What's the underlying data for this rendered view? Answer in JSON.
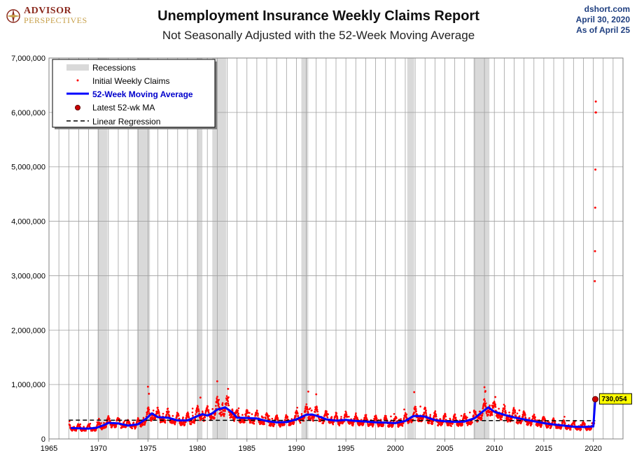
{
  "header": {
    "logo_line1": "ADVISOR",
    "logo_line2": "PERSPECTIVES",
    "source_site": "dshort.com",
    "source_date": "April 30, 2020",
    "source_asof": "As of April 25"
  },
  "colors": {
    "claims": "#ff0000",
    "moving_average": "#0000ff",
    "recession": "#d9d9d9",
    "regression": "#000000",
    "latest_marker": "#cc0000",
    "callout_bg": "#ffff00"
  },
  "chart_data": {
    "type": "scatter",
    "title": "Unemployment Insurance Weekly Claims Report",
    "subtitle": "Not Seasonally Adjusted with the 52-Week Moving Average",
    "xlim": [
      1965,
      2023
    ],
    "ylim": [
      0,
      7000000
    ],
    "x_ticks": [
      1965,
      1970,
      1975,
      1980,
      1985,
      1990,
      1995,
      2000,
      2005,
      2010,
      2015,
      2020
    ],
    "y_ticks": [
      0,
      1000000,
      2000000,
      3000000,
      4000000,
      5000000,
      6000000,
      7000000
    ],
    "y_tick_labels": [
      "0",
      "1,000,000",
      "2,000,000",
      "3,000,000",
      "4,000,000",
      "5,000,000",
      "6,000,000",
      "7,000,000"
    ],
    "grid": true,
    "legend_position": "top-left",
    "legend": [
      {
        "key": "recessions",
        "label": "Recessions"
      },
      {
        "key": "claims",
        "label": "Initial Weekly Claims"
      },
      {
        "key": "ma",
        "label": "52-Week Moving Average"
      },
      {
        "key": "latest",
        "label": "Latest 52-wk MA"
      },
      {
        "key": "regression",
        "label": "Linear Regression"
      }
    ],
    "recessions": [
      [
        1969.9,
        1970.9
      ],
      [
        1973.9,
        1975.2
      ],
      [
        1980.0,
        1980.5
      ],
      [
        1981.5,
        1982.9
      ],
      [
        1990.5,
        1991.2
      ],
      [
        2001.2,
        2001.9
      ],
      [
        2007.9,
        2009.5
      ]
    ],
    "moving_average": {
      "x": [
        1967.2,
        1968,
        1969,
        1969.8,
        1970.5,
        1971,
        1972,
        1973,
        1974,
        1974.8,
        1975.4,
        1976,
        1977,
        1978,
        1979,
        1980,
        1980.5,
        1981,
        1981.5,
        1982,
        1982.8,
        1983.5,
        1984,
        1985,
        1986,
        1987,
        1988,
        1989,
        1990,
        1991,
        1991.6,
        1992.5,
        1993,
        1994,
        1995,
        1996,
        1997,
        1998,
        1999,
        2000,
        2001,
        2001.8,
        2002.5,
        2003,
        2003.6,
        2004,
        2005,
        2006,
        2007,
        2008,
        2008.8,
        2009.4,
        2010,
        2011,
        2012,
        2013,
        2014,
        2015,
        2016,
        2017,
        2018,
        2019,
        2020.0,
        2020.2
      ],
      "y": [
        200000,
        195000,
        190000,
        205000,
        250000,
        295000,
        285000,
        245000,
        270000,
        370000,
        470000,
        400000,
        390000,
        340000,
        340000,
        420000,
        455000,
        430000,
        470000,
        540000,
        580000,
        490000,
        390000,
        385000,
        375000,
        330000,
        305000,
        310000,
        360000,
        445000,
        450000,
        400000,
        360000,
        335000,
        350000,
        330000,
        320000,
        305000,
        300000,
        290000,
        330000,
        420000,
        420000,
        410000,
        370000,
        345000,
        325000,
        315000,
        320000,
        380000,
        500000,
        580000,
        500000,
        445000,
        395000,
        360000,
        325000,
        290000,
        265000,
        245000,
        225000,
        220000,
        230000,
        730054
      ]
    },
    "claims_outliers": {
      "x": [
        2020.15,
        2020.17,
        2020.19,
        2020.21,
        2020.23,
        2020.25,
        2020.27
      ],
      "y": [
        2900000,
        3450000,
        4250000,
        4950000,
        6000000,
        6200000,
        6000000
      ]
    },
    "claims_peaks": {
      "x": [
        1975.0,
        1975.1,
        1980.3,
        1982.0,
        1983.1,
        1991.2,
        1992.0,
        2001.9,
        2009.0,
        2009.1,
        2010.1
      ],
      "y": [
        960000,
        830000,
        760000,
        1060000,
        920000,
        870000,
        820000,
        860000,
        950000,
        880000,
        770000
      ]
    },
    "regression": {
      "x": [
        1967,
        2020.2
      ],
      "y": [
        345000,
        335000
      ]
    },
    "latest": {
      "x": 2020.2,
      "y": 730054,
      "label": "730,054"
    }
  }
}
